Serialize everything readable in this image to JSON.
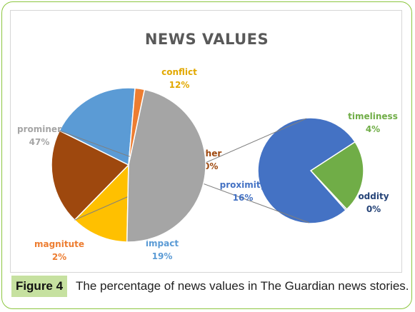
{
  "chart_data": [
    {
      "type": "pie",
      "title": "NEWS VALUES",
      "slices": [
        {
          "label": "prominence",
          "display_label": "prominer",
          "value": 47,
          "pct_label": "47%",
          "color": "#a5a5a5"
        },
        {
          "label": "conflict",
          "value": 12,
          "pct_label": "12%",
          "color": "#ffc000",
          "label_color": "#e2a800"
        },
        {
          "label": "Other",
          "value": 20,
          "pct_label": "20%",
          "color": "#9e480e",
          "label_color": "#9e480e"
        },
        {
          "label": "impact",
          "value": 19,
          "pct_label": "19%",
          "color": "#5b9bd5",
          "label_color": "#5b9bd5"
        },
        {
          "label": "magnitute",
          "value": 2,
          "pct_label": "2%",
          "color": "#ed7d31",
          "label_color": "#ed7d31"
        }
      ]
    },
    {
      "type": "pie",
      "breakdown_of": "Other",
      "slices": [
        {
          "label": "proximity",
          "value": 16,
          "pct_label": "16%",
          "color": "#4472c4",
          "label_color": "#4472c4"
        },
        {
          "label": "timeliness",
          "value": 4,
          "pct_label": "4%",
          "color": "#70ad47",
          "label_color": "#70ad47"
        },
        {
          "label": "oddity",
          "value": 0,
          "pct_label": "0%",
          "color": "#264478",
          "label_color": "#264478"
        }
      ]
    }
  ],
  "caption": {
    "figure_label": "Figure 4",
    "text": "The percentage of news values in The Guardian news stories."
  }
}
